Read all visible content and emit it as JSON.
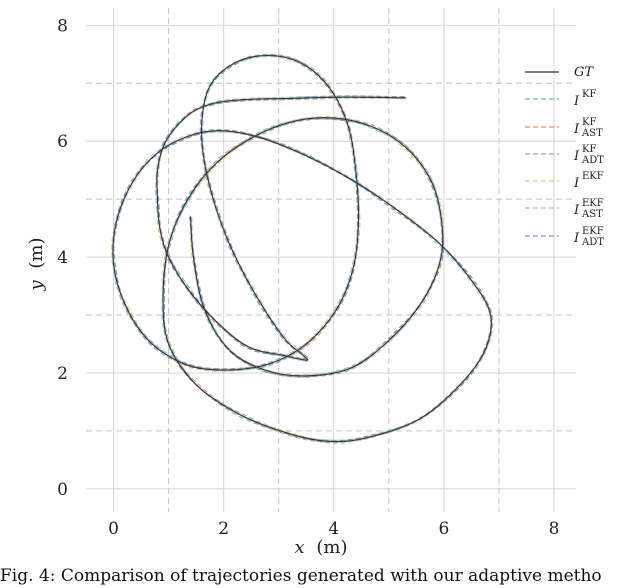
{
  "caption": "Fig. 4: Comparison of trajectories generated with our adaptive metho",
  "chart_data": {
    "type": "line",
    "title": "",
    "xlabel": {
      "var": "x",
      "unit": "(m)"
    },
    "ylabel": {
      "var": "y",
      "unit": "(m)"
    },
    "xlim": [
      -0.5,
      8.4
    ],
    "ylim": [
      -0.4,
      8.3
    ],
    "xticks": [
      0,
      2,
      4,
      6,
      8
    ],
    "yticks": [
      0,
      2,
      4,
      6,
      8
    ],
    "grid": true,
    "legend_position": "top-right",
    "colors": {
      "gt": "#333333",
      "kf": "#7fb88a",
      "kf_ast": "#e08a7a",
      "kf_adt": "#a0a0b0",
      "ekf": "#d8cc90",
      "ekf_ast": "#8cc7e6",
      "ekf_adt": "#7a9ac4"
    },
    "series": [
      {
        "name": "GT",
        "key": "gt",
        "style": "solid"
      },
      {
        "name_base": "I",
        "sup": "KF",
        "sub": "",
        "key": "kf",
        "style": "dashed"
      },
      {
        "name_base": "I",
        "sup": "KF",
        "sub": "AST",
        "key": "kf_ast",
        "style": "dashed"
      },
      {
        "name_base": "I",
        "sup": "KF",
        "sub": "ADT",
        "key": "kf_adt",
        "style": "dashed"
      },
      {
        "name_base": "I",
        "sup": "EKF",
        "sub": "",
        "key": "ekf",
        "style": "dashed"
      },
      {
        "name_base": "I",
        "sup": "EKF",
        "sub": "AST",
        "key": "ekf_ast",
        "style": "dashed"
      },
      {
        "name_base": "I",
        "sup": "EKF",
        "sub": "ADT",
        "key": "ekf_adt",
        "style": "dashed"
      }
    ],
    "trajectory": [
      [
        5.3,
        6.75
      ],
      [
        4.2,
        6.76
      ],
      [
        3.2,
        6.74
      ],
      [
        2.4,
        6.72
      ],
      [
        1.8,
        6.65
      ],
      [
        1.35,
        6.45
      ],
      [
        0.95,
        6.0
      ],
      [
        0.8,
        5.5
      ],
      [
        0.8,
        4.95
      ],
      [
        0.85,
        4.45
      ],
      [
        1.0,
        4.0
      ],
      [
        1.35,
        3.45
      ],
      [
        1.85,
        2.9
      ],
      [
        2.45,
        2.45
      ],
      [
        3.1,
        2.3
      ],
      [
        3.5,
        2.22
      ],
      [
        3.45,
        2.3
      ],
      [
        3.1,
        2.6
      ],
      [
        2.55,
        3.4
      ],
      [
        2.05,
        4.35
      ],
      [
        1.7,
        5.4
      ],
      [
        1.6,
        6.25
      ],
      [
        1.75,
        6.95
      ],
      [
        2.2,
        7.35
      ],
      [
        2.8,
        7.48
      ],
      [
        3.4,
        7.35
      ],
      [
        3.9,
        6.95
      ],
      [
        4.25,
        6.3
      ],
      [
        4.4,
        5.5
      ],
      [
        4.45,
        4.6
      ],
      [
        4.35,
        3.8
      ],
      [
        4.05,
        3.1
      ],
      [
        3.5,
        2.5
      ],
      [
        2.8,
        2.15
      ],
      [
        2.0,
        2.05
      ],
      [
        1.3,
        2.15
      ],
      [
        0.65,
        2.55
      ],
      [
        0.2,
        3.2
      ],
      [
        0.0,
        3.9
      ],
      [
        0.05,
        4.6
      ],
      [
        0.35,
        5.3
      ],
      [
        0.8,
        5.8
      ],
      [
        1.4,
        6.1
      ],
      [
        2.0,
        6.18
      ],
      [
        2.7,
        6.05
      ],
      [
        3.5,
        5.75
      ],
      [
        4.3,
        5.35
      ],
      [
        5.1,
        4.85
      ],
      [
        5.9,
        4.25
      ],
      [
        6.5,
        3.6
      ],
      [
        6.85,
        3.0
      ],
      [
        6.75,
        2.4
      ],
      [
        6.3,
        1.8
      ],
      [
        5.55,
        1.2
      ],
      [
        4.6,
        0.88
      ],
      [
        3.9,
        0.82
      ],
      [
        3.2,
        0.95
      ],
      [
        2.3,
        1.28
      ],
      [
        1.5,
        1.8
      ],
      [
        1.0,
        2.5
      ],
      [
        0.9,
        3.3
      ],
      [
        1.0,
        4.2
      ],
      [
        1.35,
        5.0
      ],
      [
        1.9,
        5.65
      ],
      [
        2.6,
        6.1
      ],
      [
        3.3,
        6.35
      ],
      [
        4.0,
        6.4
      ],
      [
        4.7,
        6.25
      ],
      [
        5.3,
        5.9
      ],
      [
        5.75,
        5.35
      ],
      [
        5.95,
        4.7
      ],
      [
        5.95,
        4.0
      ],
      [
        5.65,
        3.3
      ],
      [
        5.1,
        2.65
      ],
      [
        4.35,
        2.1
      ],
      [
        3.5,
        1.95
      ],
      [
        2.75,
        2.05
      ],
      [
        2.1,
        2.4
      ],
      [
        1.65,
        3.1
      ],
      [
        1.45,
        4.0
      ],
      [
        1.4,
        4.7
      ]
    ]
  }
}
